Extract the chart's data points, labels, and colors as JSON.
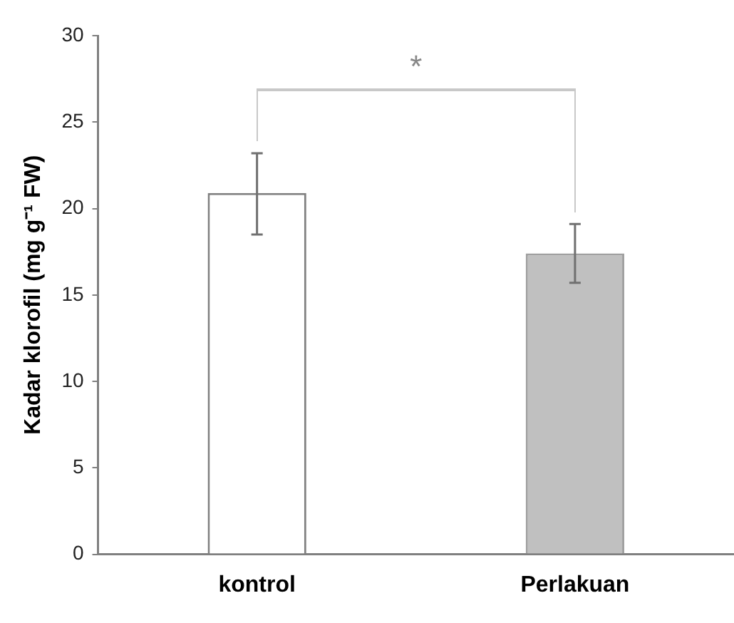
{
  "chart_data": {
    "type": "bar",
    "ylabel": "Kadar klorofil (mg g⁻¹ FW)",
    "categories": [
      "kontrol",
      "Perlakuan"
    ],
    "values": [
      20.9,
      17.4
    ],
    "colors": [
      "#ffffff",
      "#c0c0c0"
    ],
    "errors": [
      [
        18.5,
        23.2
      ],
      [
        15.7,
        19.1
      ]
    ],
    "ylim": [
      0,
      30
    ],
    "yticks": [
      0,
      5,
      10,
      15,
      20,
      25,
      30
    ],
    "grid": false,
    "legend": false,
    "annotations": [
      "*"
    ]
  }
}
